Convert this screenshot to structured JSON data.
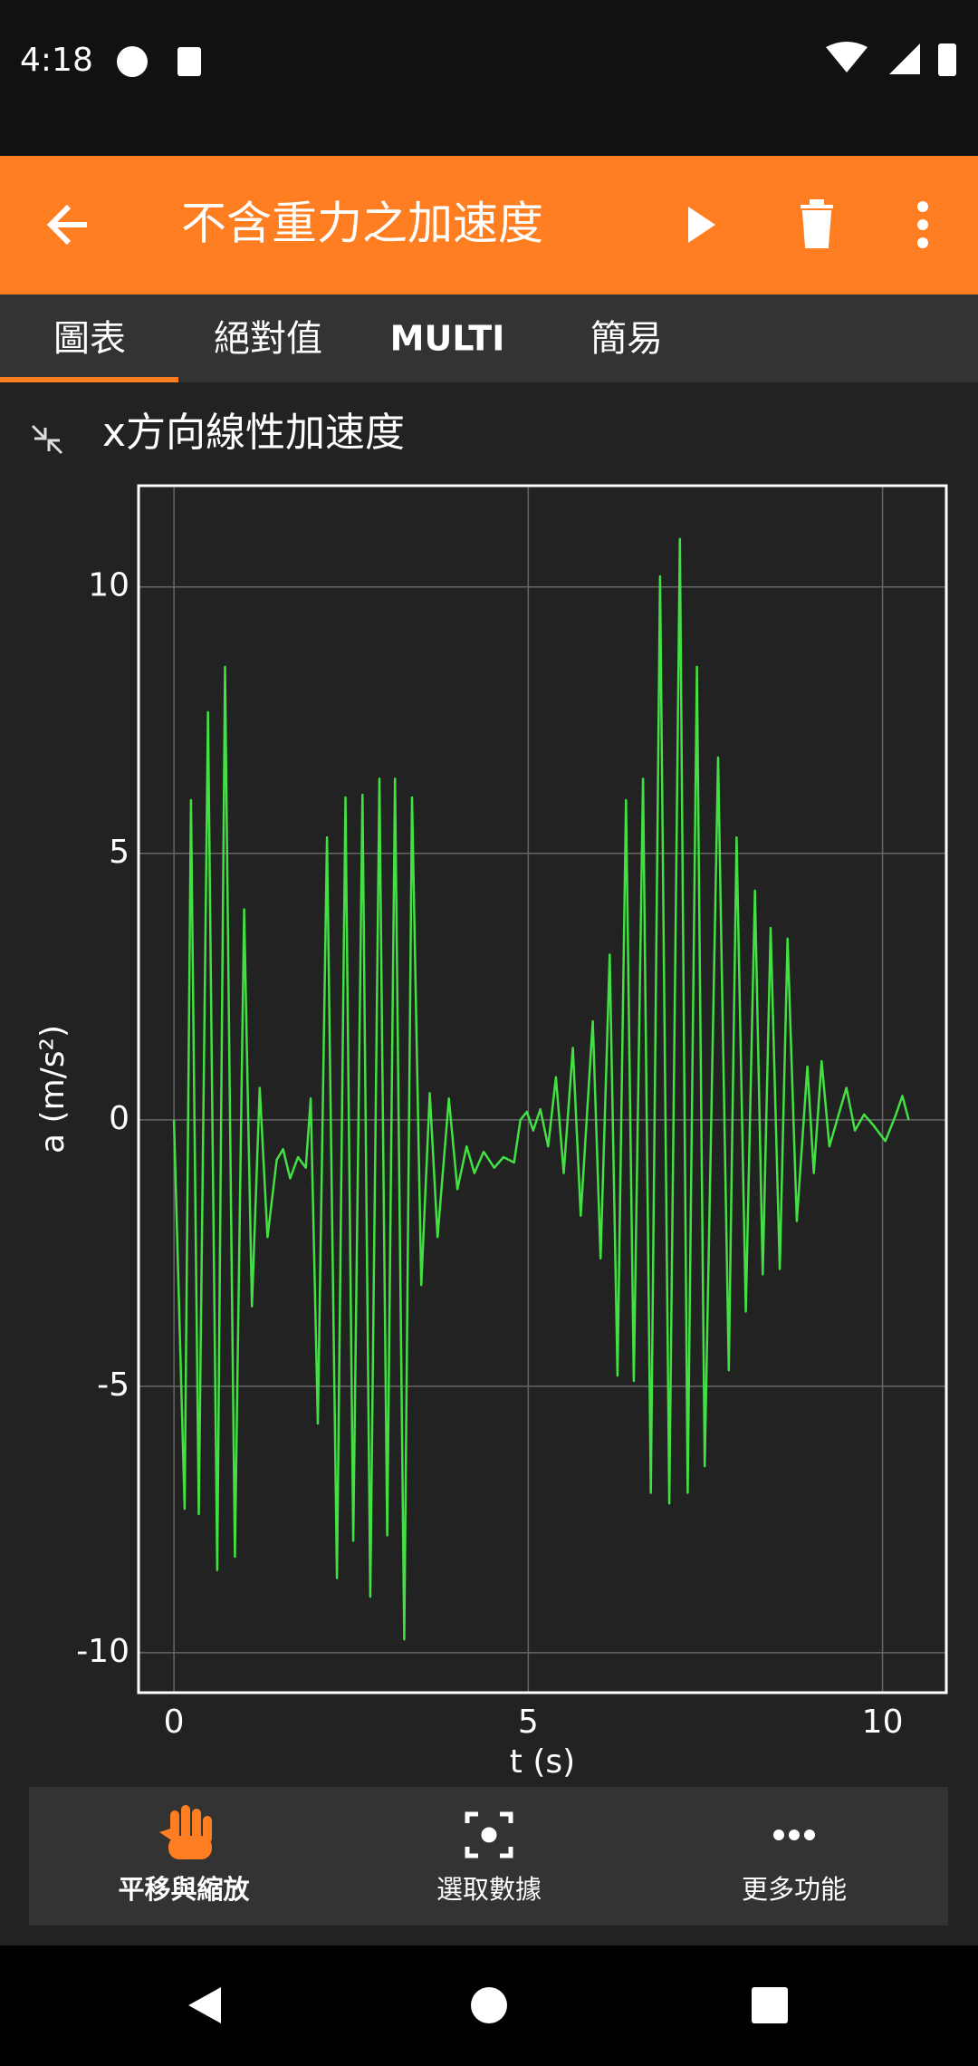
{
  "status_bar": {
    "time": "4:18"
  },
  "app_bar": {
    "title": "不含重力之加速度"
  },
  "tabs": [
    "圖表",
    "絕對值",
    "MULTI",
    "簡易"
  ],
  "toolbar": [
    "平移與縮放",
    "選取數據",
    "更多功能"
  ],
  "chart_data": {
    "type": "line",
    "title": "x方向線性加速度",
    "x_label": "t (s)",
    "y_label": "a (m/s²)",
    "x": [
      0,
      0.15,
      0.24,
      0.35,
      0.48,
      0.61,
      0.72,
      0.86,
      0.99,
      1.1,
      1.21,
      1.32,
      1.45,
      1.54,
      1.64,
      1.75,
      1.86,
      1.93,
      2.03,
      2.16,
      2.3,
      2.42,
      2.53,
      2.66,
      2.77,
      2.9,
      3.01,
      3.12,
      3.25,
      3.36,
      3.49,
      3.61,
      3.72,
      3.88,
      4.0,
      4.13,
      4.24,
      4.37,
      4.52,
      4.65,
      4.8,
      4.89,
      4.98,
      5.07,
      5.17,
      5.28,
      5.39,
      5.5,
      5.63,
      5.74,
      5.91,
      6.02,
      6.15,
      6.26,
      6.38,
      6.49,
      6.62,
      6.73,
      6.86,
      6.99,
      7.14,
      7.25,
      7.38,
      7.49,
      7.68,
      7.83,
      7.94,
      8.07,
      8.2,
      8.31,
      8.42,
      8.55,
      8.66,
      8.79,
      8.94,
      9.03,
      9.14,
      9.25,
      9.49,
      9.61,
      9.74,
      9.87,
      10.04,
      10.19,
      10.28,
      10.37
    ],
    "values": [
      0,
      -7.3,
      6.0,
      -7.4,
      7.65,
      -8.45,
      8.5,
      -8.2,
      3.95,
      -3.5,
      0.6,
      -2.2,
      -0.75,
      -0.55,
      -1.1,
      -0.7,
      -0.9,
      0.4,
      -5.7,
      5.3,
      -8.6,
      6.05,
      -7.9,
      6.1,
      -8.95,
      6.4,
      -7.8,
      6.4,
      -9.75,
      6.05,
      -3.1,
      0.5,
      -2.2,
      0.4,
      -1.3,
      -0.5,
      -1.0,
      -0.6,
      -0.9,
      -0.7,
      -0.8,
      0,
      0.15,
      -0.2,
      0.2,
      -0.5,
      0.8,
      -1.0,
      1.35,
      -1.8,
      1.85,
      -2.6,
      3.1,
      -4.8,
      6.0,
      -4.9,
      6.4,
      -7.0,
      10.2,
      -7.2,
      10.9,
      -7.0,
      8.5,
      -6.5,
      6.8,
      -4.7,
      5.3,
      -3.6,
      4.3,
      -2.9,
      3.6,
      -2.8,
      3.4,
      -1.9,
      1.0,
      -1.0,
      1.1,
      -0.5,
      0.6,
      -0.2,
      0.1,
      -0.1,
      -0.4,
      0.1,
      0.45,
      0
    ],
    "color": "#43e043",
    "xlim": [
      -0.5,
      10.9
    ],
    "ylim": [
      -10.75,
      11.9
    ],
    "xticks": [
      0,
      5,
      10
    ],
    "yticks": [
      -10,
      -5,
      0,
      5,
      10
    ],
    "grid": true
  }
}
